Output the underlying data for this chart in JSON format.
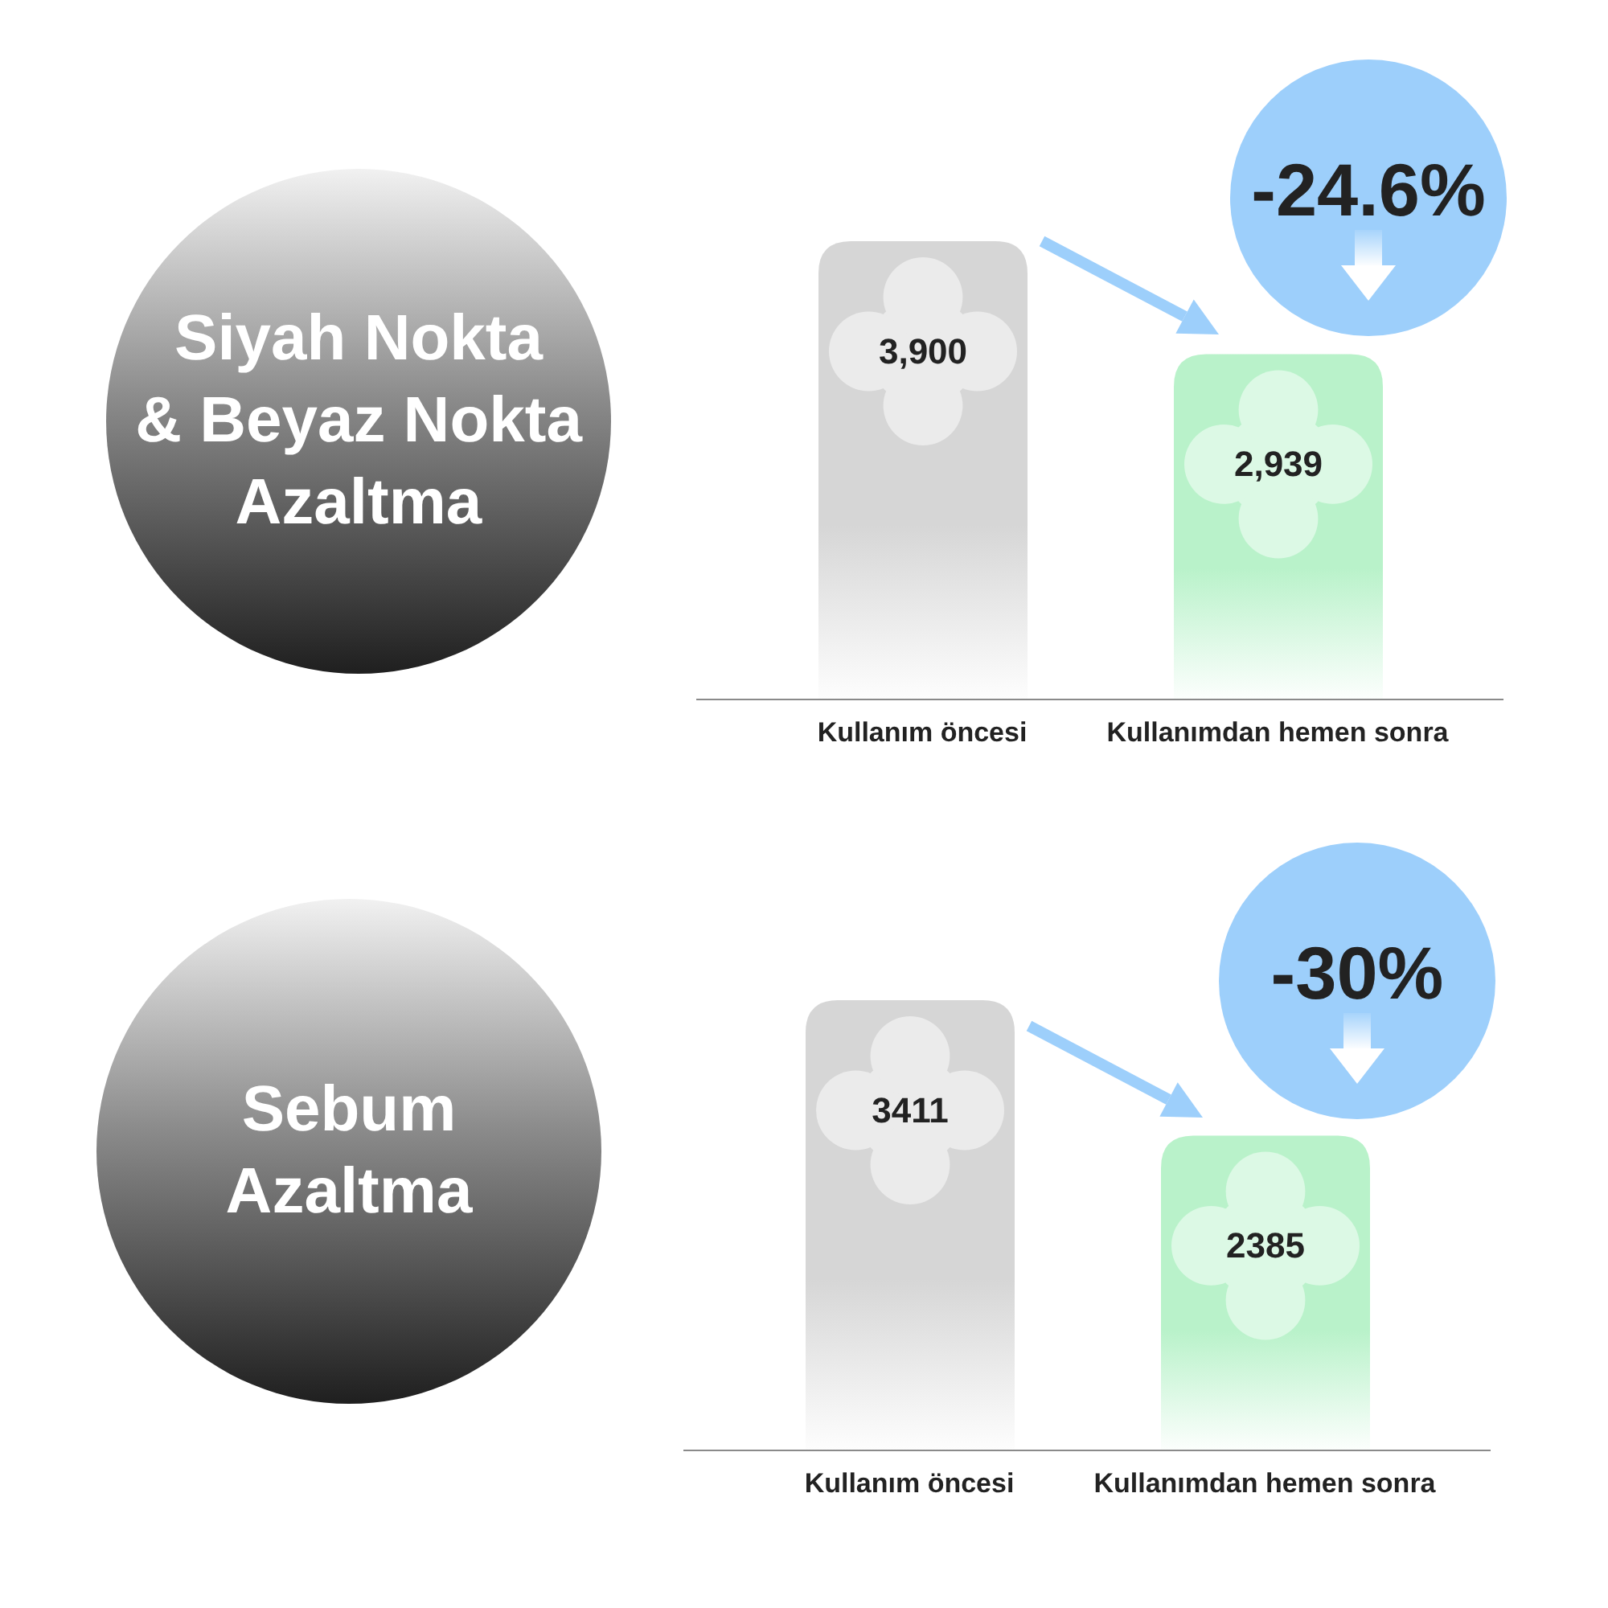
{
  "chart_data": [
    {
      "type": "bar",
      "title": "Siyah Nokta\n& Beyaz Nokta\nAzaltma",
      "categories": [
        "Kullanım öncesi",
        "Kullanımdan hemen sonra"
      ],
      "values": [
        3900,
        2939
      ],
      "value_labels": [
        "3,900",
        "2,939"
      ],
      "colors": [
        "#d6d6d6",
        "#b9f2ca"
      ],
      "annotations": [
        "-24.6%"
      ]
    },
    {
      "type": "bar",
      "title": "Sebum\nAzaltma",
      "categories": [
        "Kullanım öncesi",
        "Kullanımdan hemen sonra"
      ],
      "values": [
        3411,
        2385
      ],
      "value_labels": [
        "3411",
        "2385"
      ],
      "colors": [
        "#d6d6d6",
        "#b9f2ca"
      ],
      "annotations": [
        "-30%"
      ]
    }
  ]
}
